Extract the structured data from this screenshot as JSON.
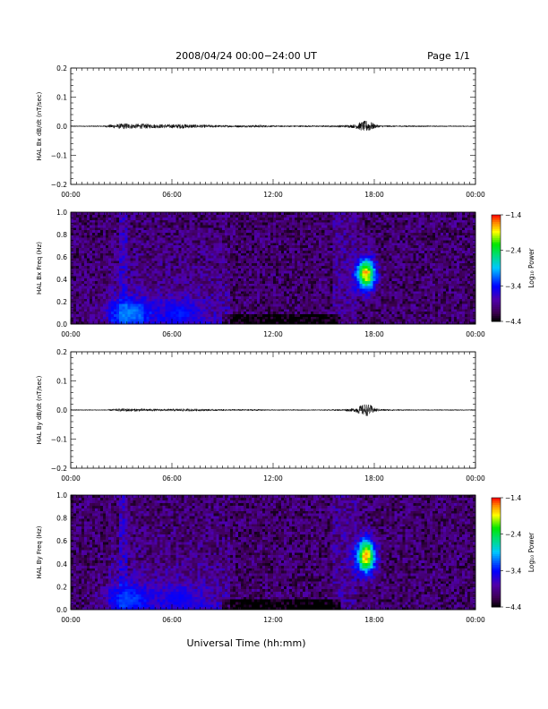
{
  "header": {
    "title": "2008/04/24  00:00−24:00 UT",
    "page": "Page 1/1"
  },
  "footer": {
    "xlabel": "Universal Time (hh:mm)"
  },
  "chart_data": [
    {
      "type": "line",
      "ylabel": "HAL Bx dB/dt (nT/sec)",
      "ylim": [
        -0.2,
        0.2
      ],
      "yticks": [
        "0.2",
        "0.1",
        "0.0",
        "−0.1",
        "−0.2"
      ],
      "ytick_values": [
        0.2,
        0.1,
        0.0,
        -0.1,
        -0.2
      ],
      "xlim": [
        0,
        24
      ],
      "xticks": [
        "00:00",
        "06:00",
        "12:00",
        "18:00",
        "00:00"
      ],
      "xtick_values": [
        0,
        6,
        12,
        18,
        24
      ],
      "envelope": {
        "hours": [
          0,
          1,
          2,
          2.5,
          3,
          3.3,
          3.7,
          4.2,
          5,
          6,
          6.5,
          7.5,
          9,
          10.5,
          11.2,
          12,
          13,
          14,
          15,
          16,
          16.8,
          17.2,
          17.5,
          17.8,
          18,
          18.3,
          19,
          20,
          22,
          24
        ],
        "amplitude": [
          0.002,
          0.002,
          0.003,
          0.007,
          0.009,
          0.011,
          0.008,
          0.009,
          0.007,
          0.007,
          0.008,
          0.006,
          0.004,
          0.004,
          0.005,
          0.003,
          0.003,
          0.003,
          0.003,
          0.004,
          0.006,
          0.015,
          0.02,
          0.016,
          0.008,
          0.004,
          0.003,
          0.003,
          0.002,
          0.002
        ]
      }
    },
    {
      "type": "heatmap",
      "ylabel": "HAL Bx Freq (Hz)",
      "ylim": [
        0,
        1
      ],
      "yticks": [
        "1.0",
        "0.8",
        "0.6",
        "0.4",
        "0.2",
        "0.0"
      ],
      "ytick_values": [
        1.0,
        0.8,
        0.6,
        0.4,
        0.2,
        0.0
      ],
      "xlim": [
        0,
        24
      ],
      "xticks": [
        "00:00",
        "06:00",
        "12:00",
        "18:00",
        "00:00"
      ],
      "xtick_values": [
        0,
        6,
        12,
        18,
        24
      ],
      "colorbar": {
        "label": "Log₁₀ Power",
        "range": [
          -4.4,
          -1.4
        ],
        "ticks": [
          "−1.4",
          "−2.4",
          "−3.4",
          "−4.4"
        ],
        "tick_values": [
          -1.4,
          -2.4,
          -3.4,
          -4.4
        ]
      },
      "features": [
        {
          "hour": 17.5,
          "freq": 0.45,
          "width_h": 0.6,
          "width_f": 0.15,
          "power": -1.5
        },
        {
          "hour": 3.5,
          "freq": 0.1,
          "width_h": 1.5,
          "width_f": 0.15,
          "power": -3.0
        },
        {
          "hour": 6.5,
          "freq": 0.1,
          "width_h": 1.2,
          "width_f": 0.12,
          "power": -3.3
        }
      ]
    },
    {
      "type": "line",
      "ylabel": "HAL By dB/dt (nT/sec)",
      "ylim": [
        -0.2,
        0.2
      ],
      "yticks": [
        "0.2",
        "0.1",
        "0.0",
        "−0.1",
        "−0.2"
      ],
      "ytick_values": [
        0.2,
        0.1,
        0.0,
        -0.1,
        -0.2
      ],
      "xlim": [
        0,
        24
      ],
      "xticks": [
        "00:00",
        "06:00",
        "12:00",
        "18:00",
        "00:00"
      ],
      "xtick_values": [
        0,
        6,
        12,
        18,
        24
      ],
      "envelope": {
        "hours": [
          0,
          1,
          2,
          2.5,
          3,
          3.3,
          3.7,
          4.2,
          5,
          6,
          6.5,
          7.5,
          9,
          10.5,
          11.2,
          12,
          13,
          14,
          15,
          16,
          16.8,
          17.2,
          17.5,
          17.8,
          18,
          18.3,
          19,
          20,
          22,
          24
        ],
        "amplitude": [
          0.002,
          0.002,
          0.002,
          0.004,
          0.005,
          0.006,
          0.005,
          0.005,
          0.004,
          0.004,
          0.005,
          0.004,
          0.003,
          0.003,
          0.003,
          0.002,
          0.002,
          0.002,
          0.002,
          0.003,
          0.006,
          0.016,
          0.022,
          0.017,
          0.008,
          0.004,
          0.003,
          0.002,
          0.002,
          0.002
        ]
      }
    },
    {
      "type": "heatmap",
      "ylabel": "HAL By Freq (Hz)",
      "ylim": [
        0,
        1
      ],
      "yticks": [
        "1.0",
        "0.8",
        "0.6",
        "0.4",
        "0.2",
        "0.0"
      ],
      "ytick_values": [
        1.0,
        0.8,
        0.6,
        0.4,
        0.2,
        0.0
      ],
      "xlim": [
        0,
        24
      ],
      "xticks": [
        "00:00",
        "06:00",
        "12:00",
        "18:00",
        "00:00"
      ],
      "xtick_values": [
        0,
        6,
        12,
        18,
        24
      ],
      "colorbar": {
        "label": "Log₁₀ Power",
        "range": [
          -4.4,
          -1.4
        ],
        "ticks": [
          "−1.4",
          "−2.4",
          "−3.4",
          "−4.4"
        ],
        "tick_values": [
          -1.4,
          -2.4,
          -3.4,
          -4.4
        ]
      },
      "features": [
        {
          "hour": 17.5,
          "freq": 0.47,
          "width_h": 0.6,
          "width_f": 0.16,
          "power": -1.5
        },
        {
          "hour": 3.5,
          "freq": 0.1,
          "width_h": 1.5,
          "width_f": 0.14,
          "power": -3.2
        },
        {
          "hour": 6.5,
          "freq": 0.1,
          "width_h": 1.2,
          "width_f": 0.12,
          "power": -3.4
        }
      ]
    }
  ]
}
